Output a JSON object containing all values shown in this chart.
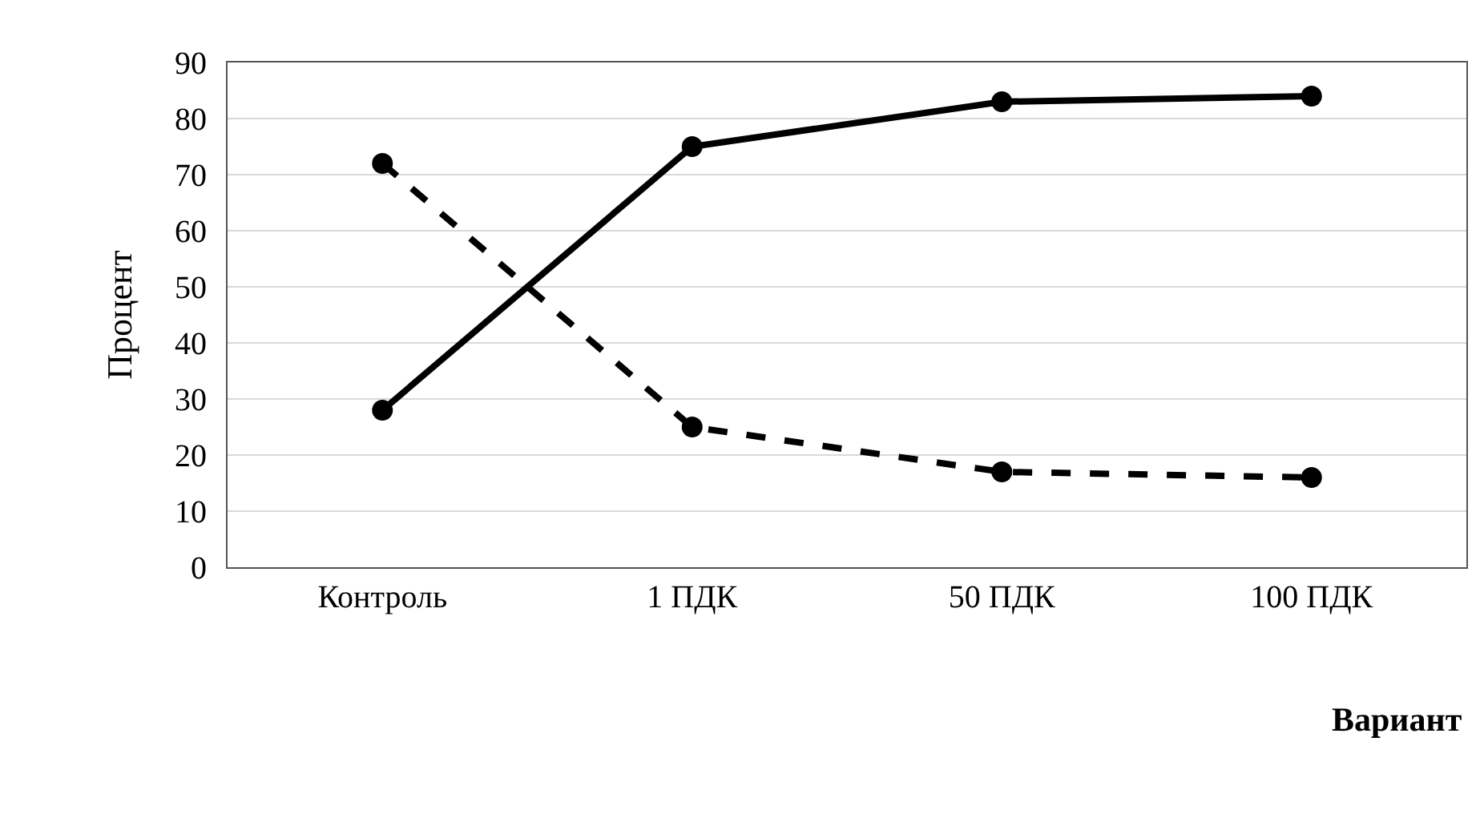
{
  "chart_data": {
    "type": "line",
    "xlabel": "Вариант",
    "ylabel": "Процент",
    "categories": [
      "Контроль",
      "1 ПДК",
      "50 ПДК",
      "100 ПДК"
    ],
    "series": [
      {
        "color": "#000000",
        "values": [
          28,
          75,
          83,
          84
        ],
        "line_style": "solid"
      },
      {
        "color": "#000000",
        "values": [
          72,
          25,
          17,
          16
        ],
        "line_style": "dashed"
      }
    ],
    "ylim": [
      0,
      90
    ],
    "yticks": [
      0,
      10,
      20,
      30,
      40,
      50,
      60,
      70,
      80,
      90
    ],
    "grid": "y",
    "marker": "circle"
  }
}
